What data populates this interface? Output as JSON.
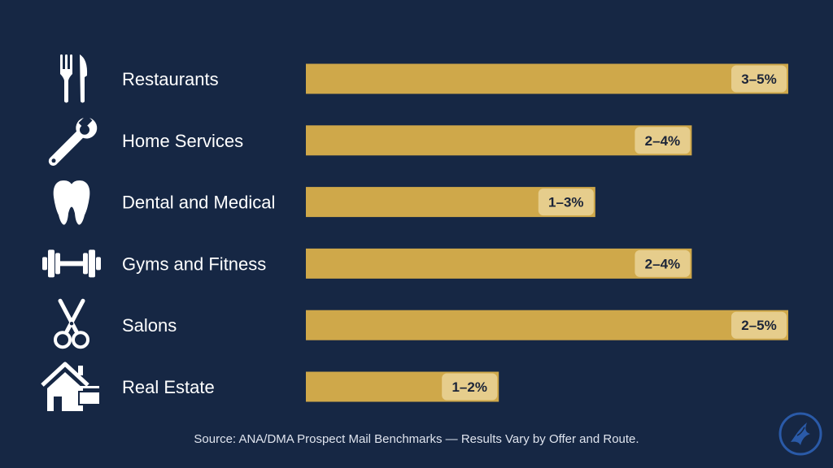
{
  "chart_data": {
    "type": "bar",
    "orientation": "horizontal",
    "categories": [
      "Restaurants",
      "Home Services",
      "Dental and Medical",
      "Gyms and Fitness",
      "Salons",
      "Real Estate"
    ],
    "icons": [
      "fork-knife-icon",
      "wrench-icon",
      "tooth-icon",
      "dumbbell-icon",
      "scissors-icon",
      "house-icon"
    ],
    "value_labels": [
      "3–5%",
      "2–4%",
      "1–3%",
      "2–4%",
      "2–5%",
      "1–2%"
    ],
    "ranges": [
      [
        3,
        5
      ],
      [
        2,
        4
      ],
      [
        1,
        3
      ],
      [
        2,
        4
      ],
      [
        2,
        5
      ],
      [
        1,
        2
      ]
    ],
    "grid": false,
    "legend": "none"
  },
  "footer": {
    "source": "Source: ANA/DMA Prospect Mail Benchmarks — Results Vary by Offer and Route."
  },
  "colors": {
    "background": "#162744",
    "bar": "#cfa84a",
    "value_pill": "#e6cd8c",
    "text": "#ffffff",
    "logo": "#2a5aa8"
  }
}
